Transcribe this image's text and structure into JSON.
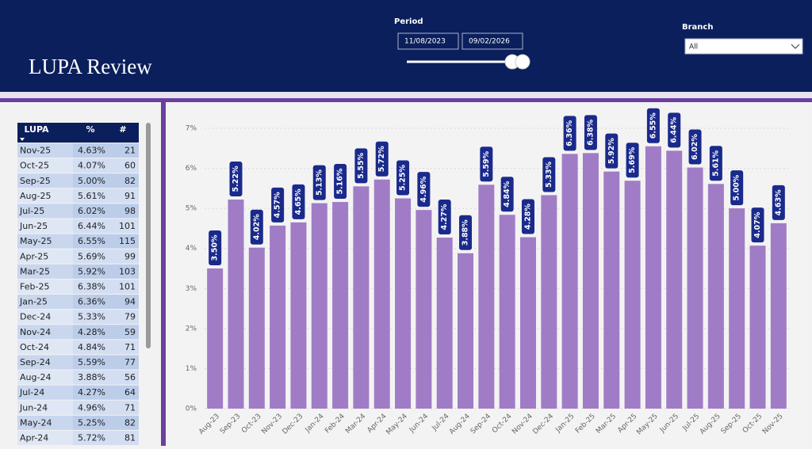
{
  "header": {
    "title": "LUPA Review"
  },
  "filters": {
    "period_label": "Period",
    "start_date": "11/08/2023",
    "end_date": "09/02/2026",
    "branch_label": "Branch",
    "branch_value": "All"
  },
  "table": {
    "columns": [
      "LUPA",
      "%",
      "#"
    ],
    "rows": [
      [
        "Nov-25",
        "4.63%",
        21
      ],
      [
        "Oct-25",
        "4.07%",
        60
      ],
      [
        "Sep-25",
        "5.00%",
        82
      ],
      [
        "Aug-25",
        "5.61%",
        91
      ],
      [
        "Jul-25",
        "6.02%",
        98
      ],
      [
        "Jun-25",
        "6.44%",
        101
      ],
      [
        "May-25",
        "6.55%",
        115
      ],
      [
        "Apr-25",
        "5.69%",
        99
      ],
      [
        "Mar-25",
        "5.92%",
        103
      ],
      [
        "Feb-25",
        "6.38%",
        101
      ],
      [
        "Jan-25",
        "6.36%",
        94
      ],
      [
        "Dec-24",
        "5.33%",
        79
      ],
      [
        "Nov-24",
        "4.28%",
        59
      ],
      [
        "Oct-24",
        "4.84%",
        71
      ],
      [
        "Sep-24",
        "5.59%",
        77
      ],
      [
        "Aug-24",
        "3.88%",
        56
      ],
      [
        "Jul-24",
        "4.27%",
        64
      ],
      [
        "Jun-24",
        "4.96%",
        71
      ],
      [
        "May-24",
        "5.25%",
        82
      ],
      [
        "Apr-24",
        "5.72%",
        81
      ]
    ]
  },
  "chart_data": {
    "type": "bar",
    "color": "#a07cc6",
    "grid": true,
    "categories": [
      "Aug-23",
      "Sep-23",
      "Oct-23",
      "Nov-23",
      "Dec-23",
      "Jan-24",
      "Feb-24",
      "Mar-24",
      "Apr-24",
      "May-24",
      "Jun-24",
      "Jul-24",
      "Aug-24",
      "Sep-24",
      "Oct-24",
      "Nov-24",
      "Dec-24",
      "Jan-25",
      "Feb-25",
      "Mar-25",
      "Apr-25",
      "May-25",
      "Jun-25",
      "Jul-25",
      "Aug-25",
      "Sep-25",
      "Oct-25",
      "Nov-25"
    ],
    "values": [
      3.5,
      5.22,
      4.02,
      4.57,
      4.65,
      5.13,
      5.16,
      5.55,
      5.72,
      5.25,
      4.96,
      4.27,
      3.88,
      5.59,
      4.84,
      4.28,
      5.33,
      6.36,
      6.38,
      5.92,
      5.69,
      6.55,
      6.44,
      6.02,
      5.61,
      5.0,
      4.07,
      4.63
    ],
    "value_labels": [
      "3.50%",
      "5.22%",
      "4.02%",
      "4.57%",
      "4.65%",
      "5.13%",
      "5.16%",
      "5.55%",
      "5.72%",
      "5.25%",
      "4.96%",
      "4.27%",
      "3.88%",
      "5.59%",
      "4.84%",
      "4.28%",
      "5.33%",
      "6.36%",
      "6.38%",
      "5.92%",
      "5.69%",
      "6.55%",
      "6.44%",
      "6.02%",
      "5.61%",
      "5.00%",
      "4.07%",
      "4.63%"
    ],
    "ylim": [
      0,
      7
    ],
    "yticks": [
      {
        "value": 0,
        "label": "0%"
      },
      {
        "value": 1,
        "label": "1%"
      },
      {
        "value": 2,
        "label": "2%"
      },
      {
        "value": 3,
        "label": "3%"
      },
      {
        "value": 4,
        "label": "4%"
      },
      {
        "value": 5,
        "label": "5%"
      },
      {
        "value": 6,
        "label": "6%"
      },
      {
        "value": 7,
        "label": "7%"
      }
    ]
  }
}
